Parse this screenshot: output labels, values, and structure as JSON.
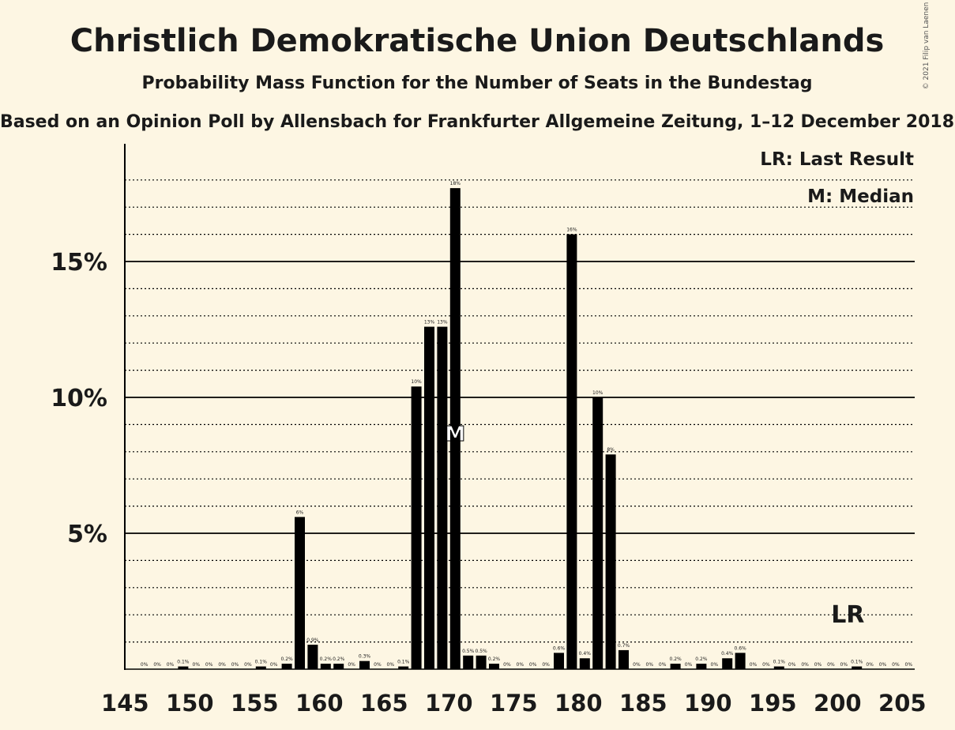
{
  "title": "Christlich Demokratische Union Deutschlands",
  "subtitle": "Probability Mass Function for the Number of Seats in the Bundestag",
  "source": "Based on an Opinion Poll by Allensbach for Frankfurter Allgemeine Zeitung, 1–12 December 2018",
  "credit": "© 2021 Filip van Laenen",
  "legend": {
    "last_result": "LR: Last Result",
    "median": "M: Median"
  },
  "markers": {
    "median_label": "M",
    "last_result_label": "LR"
  },
  "colors": {
    "bar": "#000000",
    "background": "#FDF6E3"
  },
  "chart_data": {
    "type": "bar",
    "x": [
      145,
      146,
      147,
      148,
      149,
      150,
      151,
      152,
      153,
      154,
      155,
      156,
      157,
      158,
      159,
      160,
      161,
      162,
      163,
      164,
      165,
      166,
      167,
      168,
      169,
      170,
      171,
      172,
      173,
      174,
      175,
      176,
      177,
      178,
      179,
      180,
      181,
      182,
      183,
      184,
      185,
      186,
      187,
      188,
      189,
      190,
      191,
      192,
      193,
      194,
      195,
      196,
      197,
      198,
      199,
      200,
      201,
      202,
      203,
      204,
      205
    ],
    "values": [
      0,
      0,
      0,
      0,
      0.1,
      0,
      0,
      0,
      0,
      0,
      0.1,
      0,
      0.2,
      5.6,
      0.9,
      0.2,
      0.2,
      0,
      0.3,
      0,
      0,
      0.1,
      10.4,
      12.6,
      12.6,
      17.7,
      0.5,
      0.5,
      0.2,
      0,
      0,
      0,
      0,
      0.6,
      16.0,
      0.4,
      10.0,
      7.9,
      0.7,
      0,
      0,
      0,
      0.2,
      0,
      0.2,
      0,
      0.4,
      0.6,
      0,
      0,
      0.1,
      0,
      0,
      0,
      0,
      0,
      0.1,
      0,
      0,
      0,
      0
    ],
    "labels": [
      "",
      "0%",
      "0%",
      "0%",
      "0.1%",
      "0%",
      "0%",
      "0%",
      "0%",
      "0%",
      "0.1%",
      "0%",
      "0.2%",
      "6%",
      "0.9%",
      "0.2%",
      "0.2%",
      "0%",
      "0.3%",
      "0%",
      "0%",
      "0.1%",
      "10%",
      "13%",
      "13%",
      "18%",
      "0.5%",
      "0.5%",
      "0.2%",
      "0%",
      "0%",
      "0%",
      "0%",
      "0.6%",
      "16%",
      "0.4%",
      "10%",
      "8%",
      "0.7%",
      "0%",
      "0%",
      "0%",
      "0.2%",
      "0%",
      "0.2%",
      "0%",
      "0.4%",
      "0.6%",
      "0%",
      "0%",
      "0.1%",
      "0%",
      "0%",
      "0%",
      "0%",
      "0%",
      "0.1%",
      "0%",
      "0%",
      "0%",
      "0%"
    ],
    "xticks": [
      145,
      150,
      155,
      160,
      165,
      170,
      175,
      180,
      185,
      190,
      195,
      200,
      205
    ],
    "xtick_labels": [
      "145",
      "150",
      "155",
      "160",
      "165",
      "170",
      "175",
      "180",
      "185",
      "190",
      "195",
      "200",
      "205"
    ],
    "yticks": [
      5,
      10,
      15
    ],
    "ytick_labels": [
      "5%",
      "10%",
      "15%"
    ],
    "ylim": [
      0,
      19
    ],
    "xlim": [
      145,
      205
    ],
    "median": 170,
    "last_result": 200
  }
}
